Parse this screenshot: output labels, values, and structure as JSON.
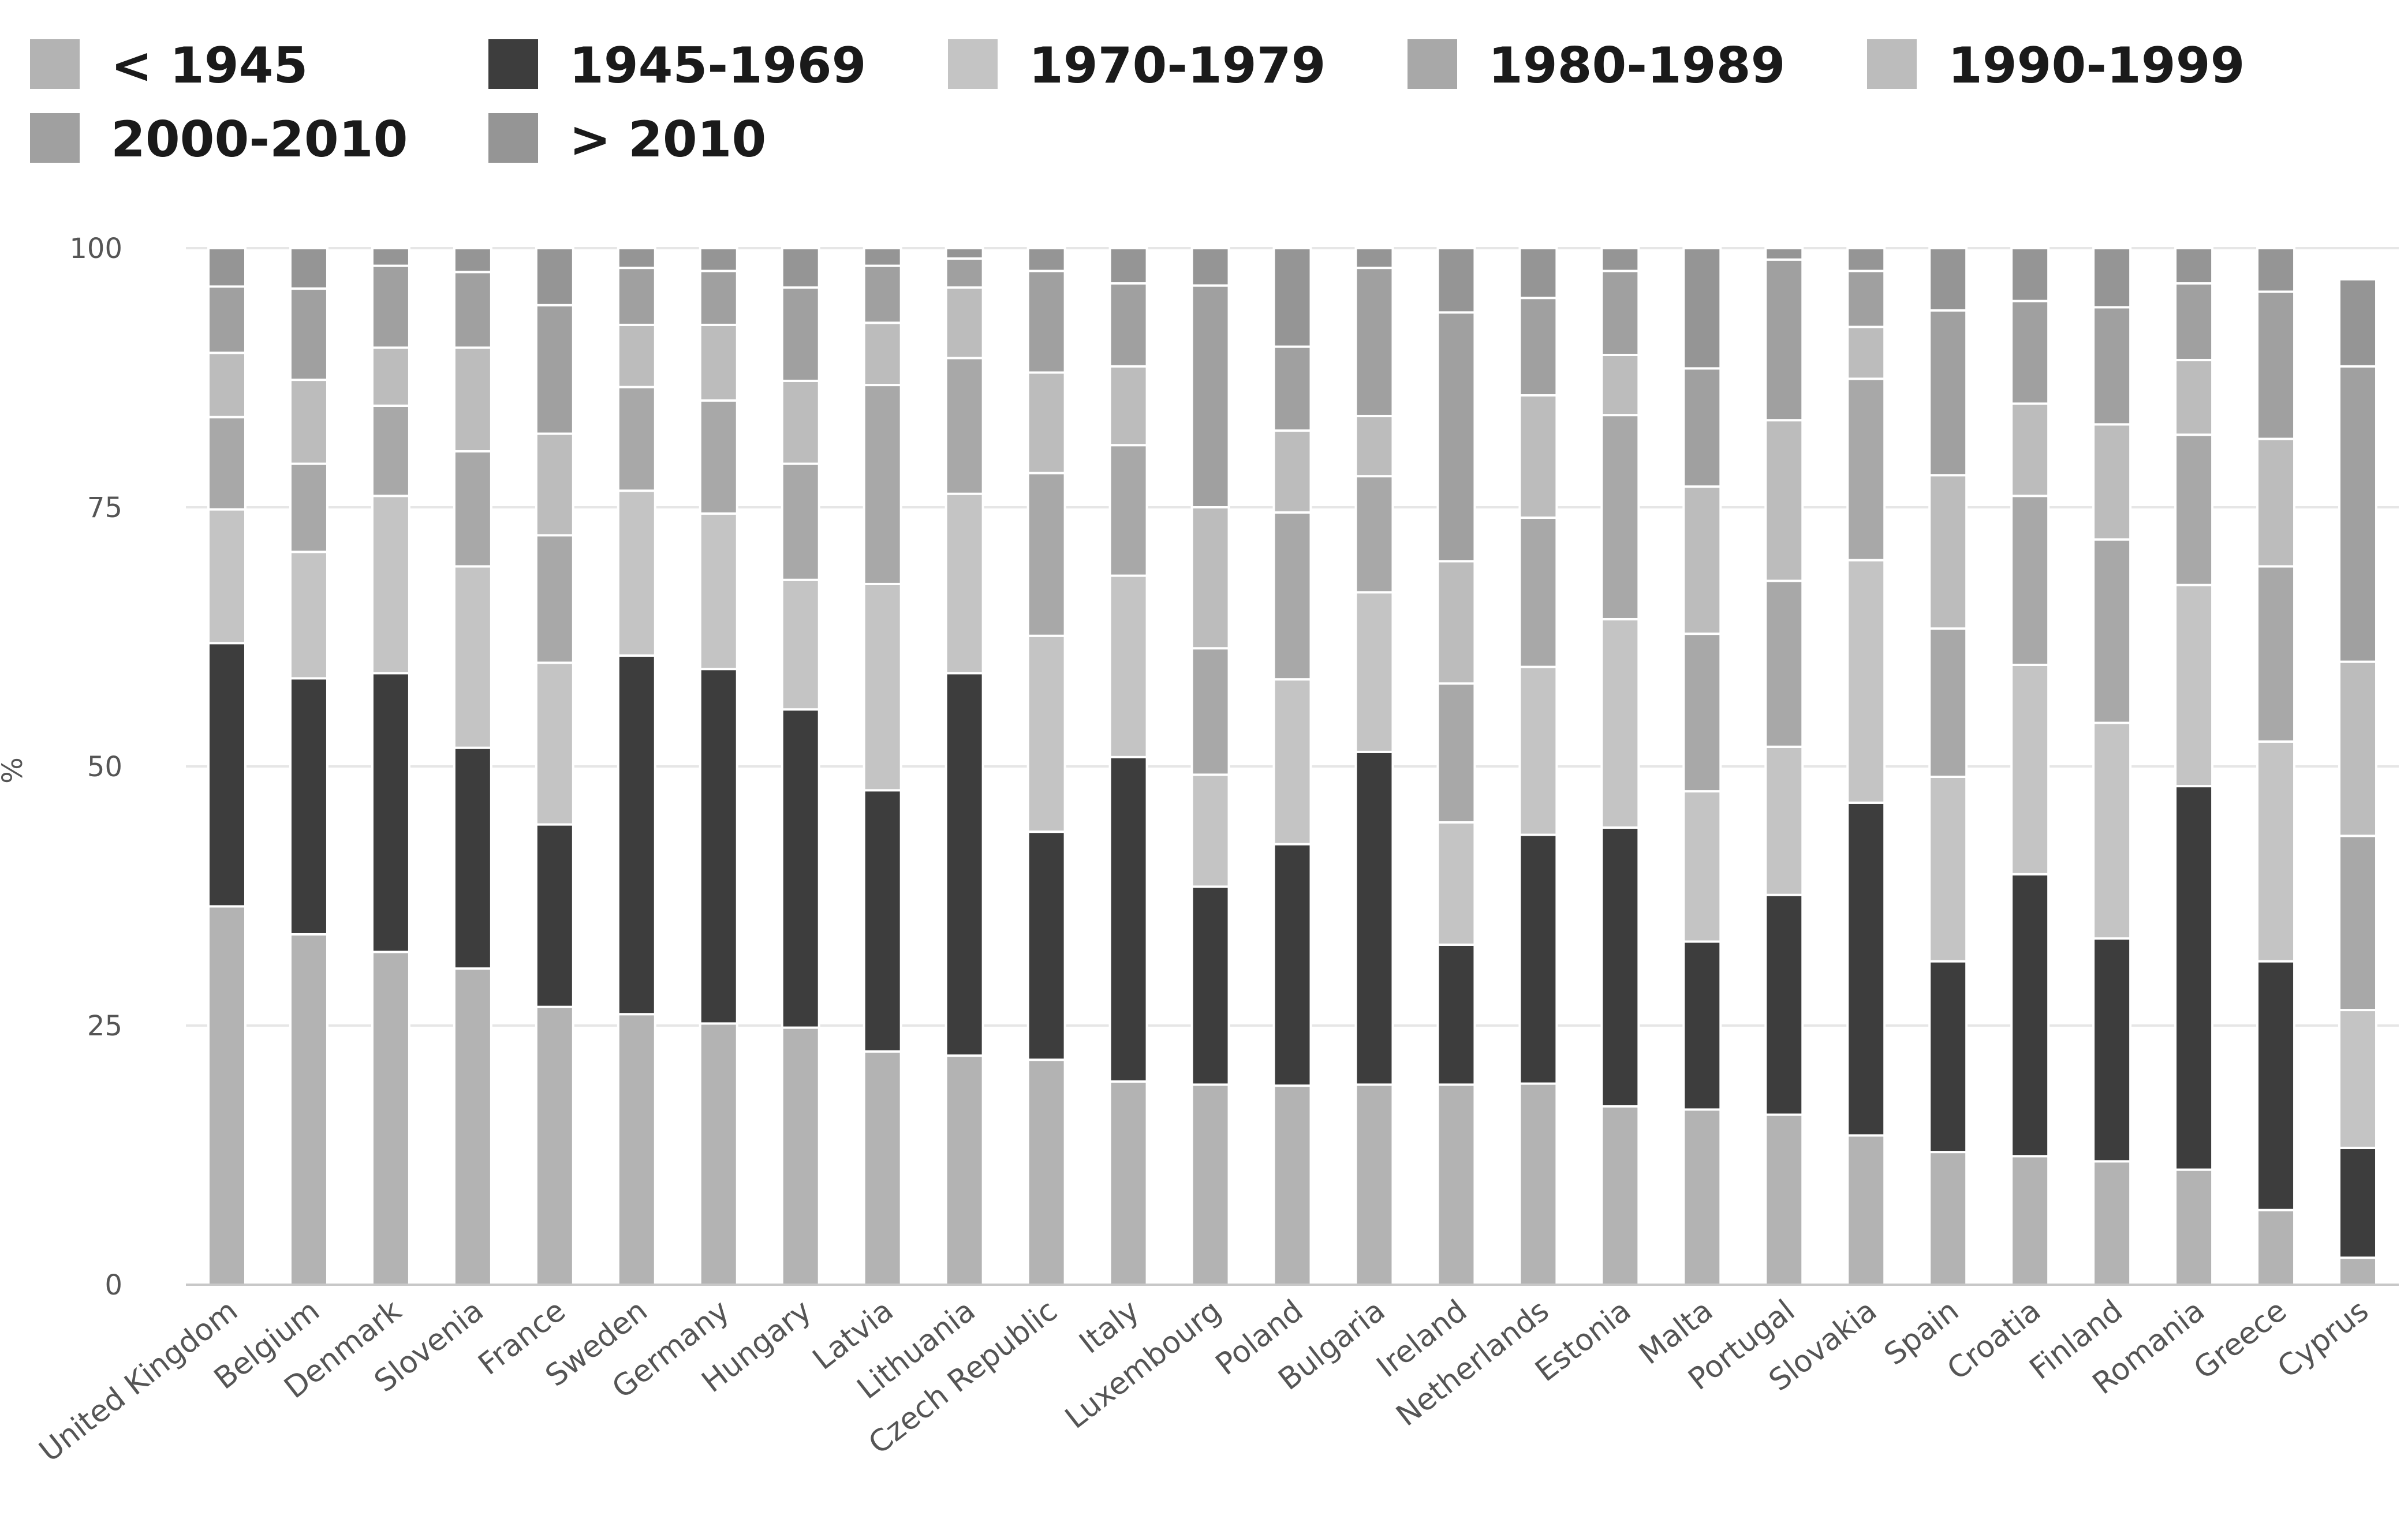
{
  "chart_data": {
    "type": "bar",
    "stacked": true,
    "ylabel": "%",
    "ylim": [
      0,
      100
    ],
    "yticks": [
      0,
      25,
      50,
      75,
      100
    ],
    "grid": true,
    "legend_position": "top",
    "categories": [
      "United Kingdom",
      "Belgium",
      "Denmark",
      "Slovenia",
      "France",
      "Sweden",
      "Germany",
      "Hungary",
      "Latvia",
      "Lithuania",
      "Czech Republic",
      "Italy",
      "Luxembourg",
      "Poland",
      "Bulgaria",
      "Ireland",
      "Netherlands",
      "Estonia",
      "Malta",
      "Portugal",
      "Slovakia",
      "Spain",
      "Croatia",
      "Finland",
      "Romania",
      "Greece",
      "Cyprus"
    ],
    "series": [
      {
        "name": "< 1945",
        "color": "#b3b3b3",
        "values": [
          36.5,
          33.8,
          32.1,
          30.5,
          26.8,
          26.1,
          25.2,
          24.8,
          22.5,
          22.1,
          21.7,
          19.6,
          19.3,
          19.2,
          19.3,
          19.3,
          19.4,
          17.2,
          16.9,
          16.4,
          14.4,
          12.8,
          12.4,
          11.9,
          11.1,
          7.2,
          2.6
        ]
      },
      {
        "name": "1945-1969",
        "color": "#3d3d3d",
        "values": [
          25.4,
          24.7,
          26.9,
          21.3,
          17.6,
          34.6,
          34.2,
          30.7,
          25.2,
          36.9,
          22.0,
          31.3,
          19.1,
          23.3,
          32.1,
          13.5,
          24.0,
          26.9,
          16.2,
          21.2,
          32.1,
          18.4,
          27.2,
          21.5,
          37.0,
          24.0,
          10.6
        ]
      },
      {
        "name": "1970-1979",
        "color": "#c4c4c4",
        "values": [
          12.9,
          12.2,
          17.1,
          17.5,
          15.6,
          15.9,
          15.0,
          12.5,
          19.9,
          17.3,
          18.9,
          17.5,
          10.8,
          15.9,
          15.4,
          11.8,
          16.2,
          20.1,
          14.5,
          14.3,
          23.4,
          17.8,
          20.2,
          20.8,
          19.4,
          21.2,
          13.3
        ]
      },
      {
        "name": "1980-1989",
        "color": "#a8a8a8",
        "values": [
          8.9,
          8.5,
          8.7,
          11.1,
          12.3,
          10.0,
          10.9,
          11.2,
          19.2,
          13.1,
          15.7,
          12.6,
          12.2,
          16.1,
          11.2,
          13.4,
          14.4,
          19.7,
          15.2,
          16.0,
          17.5,
          14.3,
          16.3,
          17.7,
          14.5,
          16.9,
          16.8
        ]
      },
      {
        "name": "1990-1999",
        "color": "#bcbcbc",
        "values": [
          6.2,
          8.1,
          5.6,
          10.0,
          9.8,
          6.0,
          7.3,
          8.0,
          6.0,
          6.8,
          9.7,
          7.6,
          13.6,
          7.9,
          5.8,
          11.8,
          11.8,
          5.8,
          14.2,
          15.5,
          5.0,
          14.8,
          8.9,
          11.1,
          7.2,
          12.3,
          16.8
        ]
      },
      {
        "name": "2000-2010",
        "color": "#a0a0a0",
        "values": [
          6.4,
          8.8,
          7.9,
          7.3,
          12.4,
          5.5,
          5.2,
          9.0,
          5.5,
          2.8,
          9.8,
          8.0,
          21.4,
          8.1,
          14.3,
          24.0,
          9.4,
          8.1,
          11.4,
          15.5,
          5.4,
          15.9,
          9.9,
          11.3,
          7.4,
          14.2,
          28.5
        ]
      },
      {
        "name": "> 2010",
        "color": "#959595",
        "values": [
          3.7,
          3.9,
          1.7,
          2.3,
          5.5,
          1.9,
          2.2,
          3.8,
          1.7,
          1.0,
          2.2,
          3.4,
          3.6,
          9.5,
          1.9,
          6.2,
          4.8,
          2.2,
          11.6,
          1.1,
          2.2,
          6.0,
          5.1,
          5.7,
          3.4,
          4.2,
          8.4
        ]
      }
    ]
  }
}
